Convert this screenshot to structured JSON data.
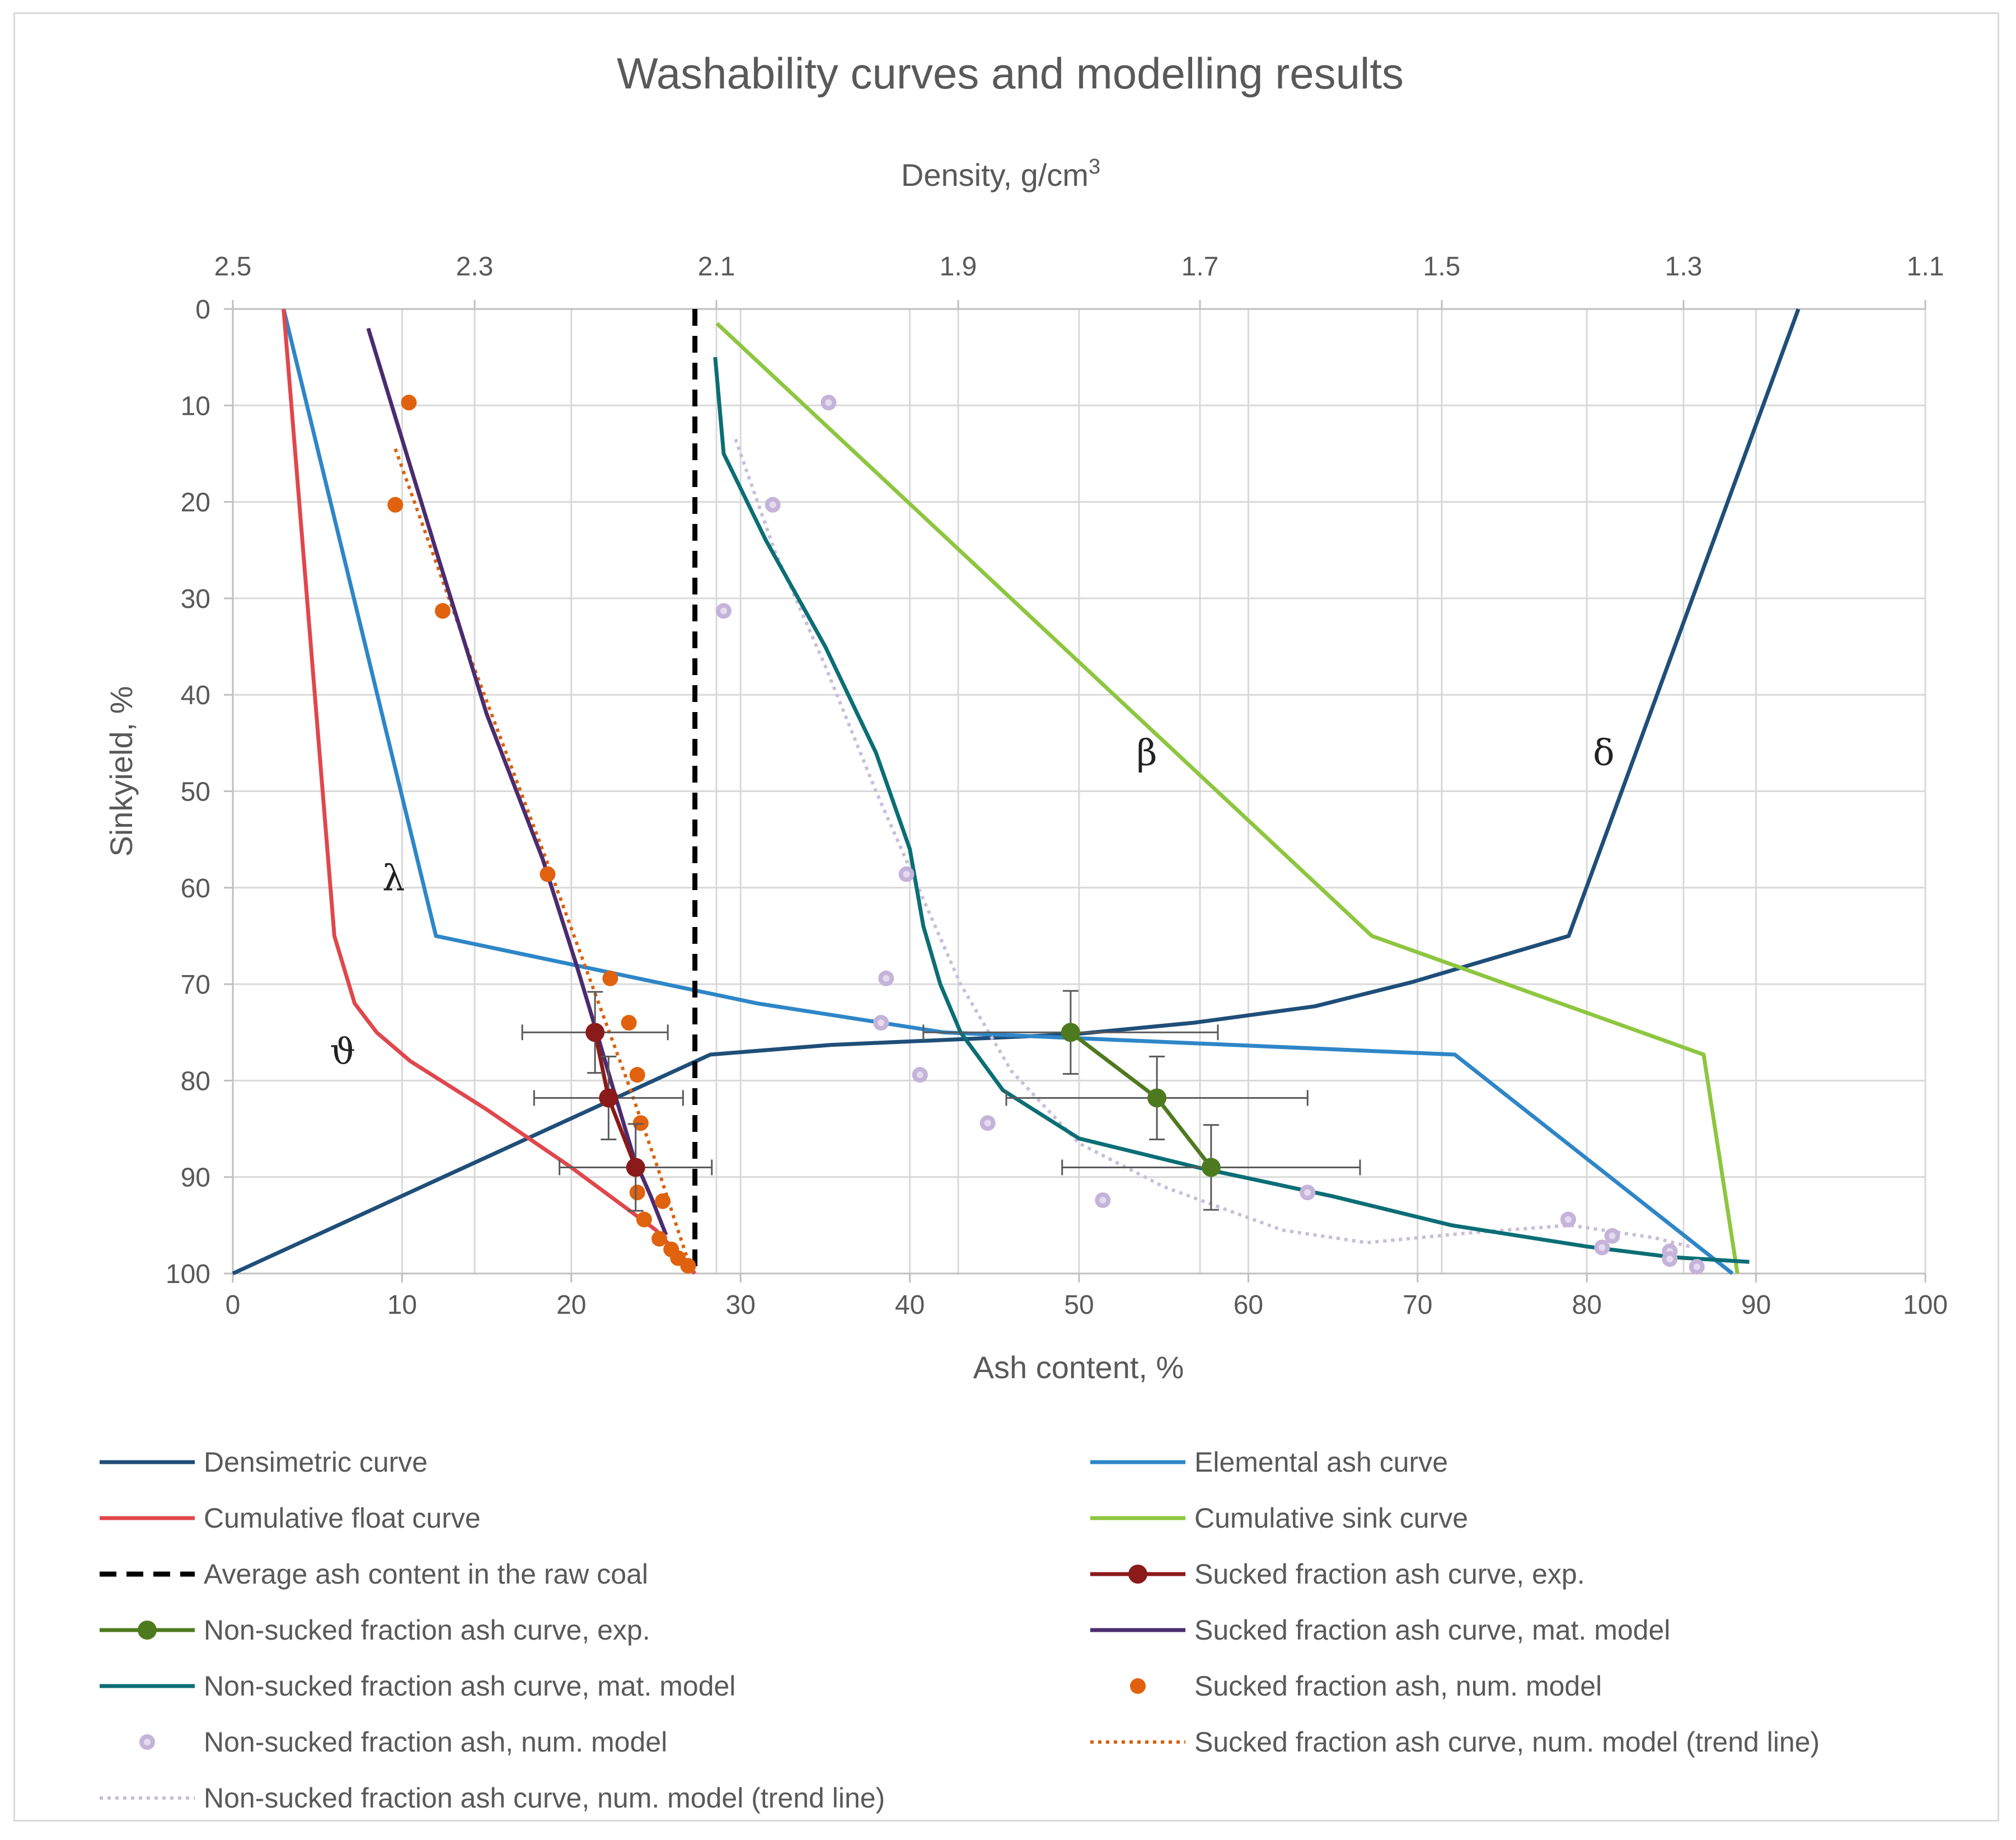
{
  "chart_data": {
    "type": "line",
    "title": "Washability curves and modelling results",
    "x_bottom": {
      "label": "Ash content, %",
      "range": [
        0,
        100
      ],
      "ticks": [
        0,
        10,
        20,
        30,
        40,
        50,
        60,
        70,
        80,
        90,
        100
      ]
    },
    "x_top": {
      "label_main": "Density, g/cm",
      "label_sup": "3",
      "range": [
        2.5,
        1.1
      ],
      "ticks": [
        "2.5",
        "2.3",
        "2.1",
        "1.9",
        "1.7",
        "1.5",
        "1.3",
        "1.1"
      ]
    },
    "y": {
      "label": "Sinkyield, %",
      "range": [
        0,
        100
      ],
      "reversed": true,
      "ticks": [
        0,
        10,
        20,
        30,
        40,
        50,
        60,
        70,
        80,
        90,
        100
      ]
    },
    "annotations": [
      {
        "text": "β",
        "x": 54,
        "y": 46
      },
      {
        "text": "δ",
        "x": 81,
        "y": 46
      },
      {
        "text": "λ",
        "x": 9.5,
        "y": 59
      },
      {
        "text": "ϑ",
        "x": 6.5,
        "y": 77
      }
    ],
    "series": [
      {
        "key": "densimetric",
        "name": "Densimetric curve",
        "color": "#1f4e79",
        "kind": "line",
        "axis": "density",
        "points": [
          [
            1.205,
            0
          ],
          [
            1.395,
            65
          ],
          [
            1.525,
            69.8
          ],
          [
            1.605,
            72.3
          ],
          [
            1.705,
            74
          ],
          [
            1.805,
            75.2
          ],
          [
            2.005,
            76.3
          ],
          [
            2.105,
            77.3
          ],
          [
            2.105,
            77.3
          ],
          [
            2.5,
            100
          ]
        ]
      },
      {
        "key": "elemental",
        "name": "Elemental ash curve",
        "color": "#2e86c8",
        "kind": "line",
        "points": [
          [
            3,
            0
          ],
          [
            12,
            65
          ],
          [
            31,
            72
          ],
          [
            42,
            75
          ],
          [
            72.2,
            77.3
          ],
          [
            88.6,
            100
          ]
        ]
      },
      {
        "key": "cum_float",
        "name": "Cumulative float curve",
        "color": "#e0474c",
        "kind": "line",
        "points": [
          [
            3,
            0
          ],
          [
            6,
            65
          ],
          [
            7.2,
            72
          ],
          [
            8.5,
            75
          ],
          [
            10.5,
            78
          ],
          [
            15,
            83
          ],
          [
            20,
            89
          ],
          [
            25,
            95.5
          ],
          [
            27.3,
            100
          ]
        ]
      },
      {
        "key": "cum_sink",
        "name": "Cumulative sink curve",
        "color": "#8dc63f",
        "kind": "line",
        "points": [
          [
            28.6,
            1.5
          ],
          [
            67.3,
            65
          ],
          [
            86.9,
            77.3
          ],
          [
            88.9,
            100
          ]
        ]
      },
      {
        "key": "avg_ash",
        "name": "Average ash content in the raw coal",
        "color": "#000000",
        "kind": "dashed",
        "points": [
          [
            27.3,
            0
          ],
          [
            27.3,
            100
          ]
        ]
      },
      {
        "key": "sucked_exp",
        "name": "Sucked fraction ash curve, exp.",
        "color": "#8b1a1a",
        "kind": "line-marker",
        "points": [
          [
            21.4,
            75
          ],
          [
            22.2,
            81.8
          ],
          [
            23.8,
            89
          ]
        ],
        "x_err": [
          4.3,
          4.4,
          4.5
        ],
        "y_err": [
          4.2,
          4.3,
          4.5
        ]
      },
      {
        "key": "nonsucked_exp",
        "name": "Non-sucked fraction ash curve, exp.",
        "color": "#4e7a1f",
        "kind": "line-marker",
        "points": [
          [
            49.5,
            75
          ],
          [
            54.6,
            81.8
          ],
          [
            57.8,
            89
          ]
        ],
        "x_err": [
          8.7,
          8.9,
          8.8
        ],
        "y_err": [
          4.3,
          4.3,
          4.4
        ]
      },
      {
        "key": "sucked_mat",
        "name": "Sucked fraction ash curve, mat. model",
        "color": "#4b2c6f",
        "kind": "line",
        "points": [
          [
            8,
            2
          ],
          [
            12,
            25
          ],
          [
            15,
            42
          ],
          [
            18.3,
            57
          ],
          [
            20.3,
            68
          ],
          [
            21.5,
            75
          ],
          [
            22.5,
            81
          ],
          [
            23.7,
            88
          ],
          [
            24.7,
            92
          ],
          [
            25.6,
            96
          ]
        ]
      },
      {
        "key": "nonsucked_mat",
        "name": "Non-sucked fraction ash curve, mat. model",
        "color": "#0b6e75",
        "kind": "line",
        "points": [
          [
            28.5,
            5
          ],
          [
            29,
            15
          ],
          [
            31.5,
            24
          ],
          [
            35,
            35
          ],
          [
            38,
            46
          ],
          [
            40,
            56
          ],
          [
            40.8,
            64
          ],
          [
            41.8,
            70
          ],
          [
            43,
            75
          ],
          [
            45.5,
            81
          ],
          [
            50,
            86
          ],
          [
            57,
            89
          ],
          [
            65,
            92
          ],
          [
            72,
            95
          ],
          [
            80,
            97.2
          ],
          [
            85,
            98.3
          ],
          [
            89.6,
            98.8
          ]
        ]
      },
      {
        "key": "sucked_num",
        "name": "Sucked fraction ash, num. model",
        "color": "#e0620f",
        "kind": "scatter",
        "points": [
          [
            10.4,
            9.7
          ],
          [
            9.6,
            20.3
          ],
          [
            12.4,
            31.3
          ],
          [
            18.6,
            58.6
          ],
          [
            22.3,
            69.4
          ],
          [
            23.4,
            74
          ],
          [
            23.9,
            79.4
          ],
          [
            24.1,
            84.4
          ],
          [
            23.9,
            91.6
          ],
          [
            25.4,
            92.5
          ],
          [
            24.3,
            94.4
          ],
          [
            25.2,
            96.4
          ],
          [
            25.9,
            97.5
          ],
          [
            26.3,
            98.4
          ],
          [
            26.9,
            99.2
          ]
        ]
      },
      {
        "key": "nonsucked_num",
        "name": "Non-sucked fraction ash, num. model",
        "color": "#c5b3da",
        "kind": "scatter",
        "points": [
          [
            35.2,
            9.7
          ],
          [
            31.9,
            20.3
          ],
          [
            29,
            31.3
          ],
          [
            39.8,
            58.6
          ],
          [
            38.6,
            69.4
          ],
          [
            38.3,
            74
          ],
          [
            40.6,
            79.4
          ],
          [
            44.6,
            84.4
          ],
          [
            51.4,
            92.4
          ],
          [
            63.5,
            91.6
          ],
          [
            78.9,
            94.4
          ],
          [
            81.5,
            96.1
          ],
          [
            80.9,
            97.3
          ],
          [
            84.9,
            97.7
          ],
          [
            84.9,
            98.5
          ],
          [
            86.5,
            99.3
          ]
        ]
      },
      {
        "key": "sucked_trend",
        "name": "Sucked fraction ash curve, num. model (trend line)",
        "color": "#d9620f",
        "kind": "dotted",
        "points": [
          [
            9.6,
            14.5
          ],
          [
            14,
            36
          ],
          [
            18.5,
            57
          ],
          [
            21.2,
            70
          ],
          [
            23.3,
            80
          ],
          [
            25.1,
            89
          ],
          [
            26.3,
            95.5
          ],
          [
            27,
            99.2
          ]
        ]
      },
      {
        "key": "nonsucked_trend",
        "name": "Non-sucked fraction ash curve, num. model (trend line)",
        "color": "#c9bdd9",
        "kind": "dotted",
        "points": [
          [
            29.7,
            13.5
          ],
          [
            32,
            25
          ],
          [
            35,
            37
          ],
          [
            38,
            50
          ],
          [
            41,
            62
          ],
          [
            43,
            70
          ],
          [
            46,
            79
          ],
          [
            50,
            86.5
          ],
          [
            55,
            91
          ],
          [
            62,
            95.5
          ],
          [
            67,
            96.8
          ],
          [
            73,
            95.8
          ],
          [
            79,
            95
          ],
          [
            84,
            96.3
          ],
          [
            86.3,
            97.3
          ]
        ]
      }
    ],
    "legend_position": "bottom"
  }
}
